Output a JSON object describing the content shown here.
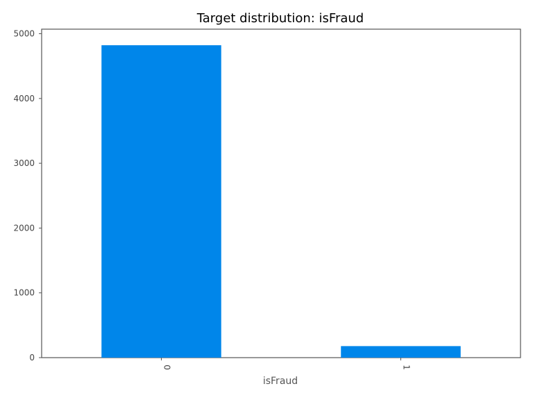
{
  "chart_data": {
    "type": "bar",
    "title": "Target distribution: isFraud",
    "xlabel": "isFraud",
    "ylabel": "",
    "categories": [
      "0",
      "1"
    ],
    "values": [
      4822,
      178
    ],
    "ylim": [
      0,
      5000
    ],
    "y_ticks": [
      "0",
      "1000",
      "2000",
      "3000",
      "4000",
      "5000"
    ],
    "grid": false,
    "legend": "none",
    "bar_color": "#0086ea",
    "axis_color": "#555555"
  }
}
